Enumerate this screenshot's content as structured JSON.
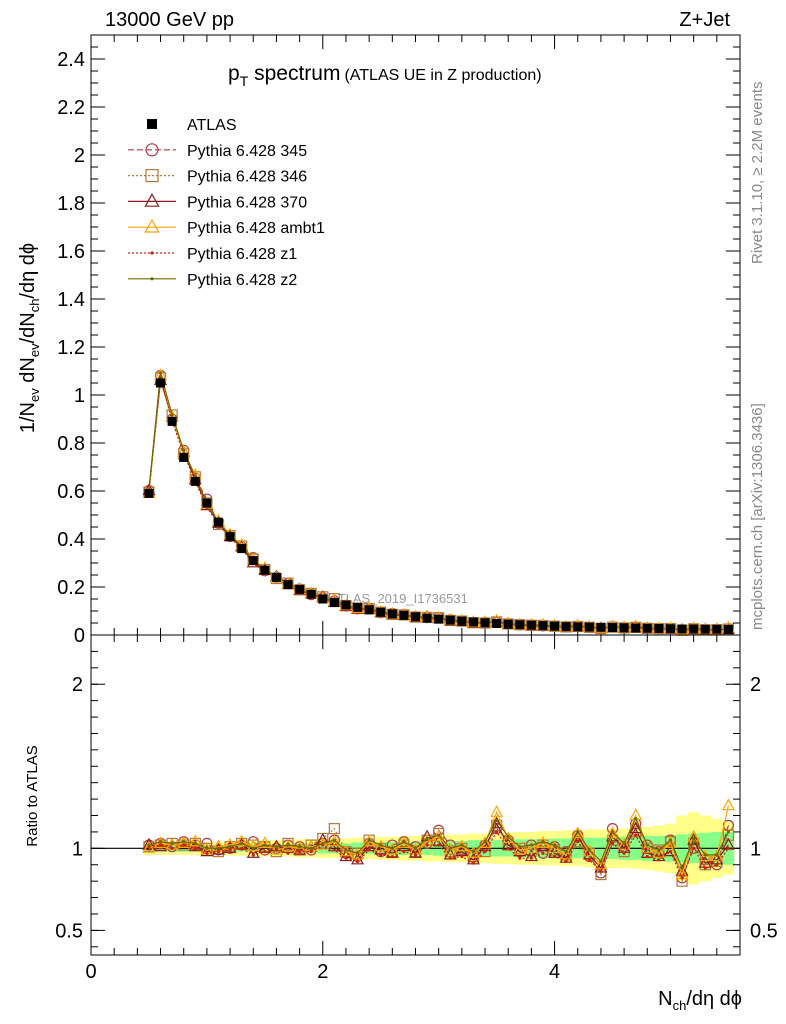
{
  "header": {
    "energy": "13000 GeV pp",
    "process": "Z+Jet"
  },
  "side_labels": {
    "rivet": "Rivet 3.1.10, ≥ 2.2M events",
    "mcplots": "mcplots.cern.ch [arXiv:1306.3436]"
  },
  "watermark": "ATLAS_2019_I1736531",
  "chart_data": [
    {
      "panel": "main",
      "type": "line",
      "title_main": "p",
      "title_sub": "T",
      "title_rest": " spectrum",
      "title_note": "(ATLAS UE in Z production)",
      "ylabel": {
        "a": "1/N",
        "a_sub": "ev",
        "b": " dN",
        "b_sub": "ev",
        "c": "/dN",
        "c_sub": "ch",
        "d": "/dη dϕ"
      },
      "xlabel": {
        "a": "N",
        "a_sub": "ch",
        "b": "/dη dϕ"
      },
      "xlim": [
        0,
        5.6
      ],
      "ylim": [
        0,
        2.5
      ],
      "yticks": [
        "0",
        "0.2",
        "0.4",
        "0.6",
        "0.8",
        "1",
        "1.2",
        "1.4",
        "1.6",
        "1.8",
        "2",
        "2.2",
        "2.4"
      ],
      "xticks": [
        "0",
        "2",
        "4"
      ],
      "x": [
        0.5,
        0.6,
        0.7,
        0.8,
        0.9,
        1.0,
        1.1,
        1.2,
        1.3,
        1.4,
        1.5,
        1.6,
        1.7,
        1.8,
        1.9,
        2.0,
        2.1,
        2.2,
        2.3,
        2.4,
        2.5,
        2.6,
        2.7,
        2.8,
        2.9,
        3.0,
        3.1,
        3.2,
        3.3,
        3.4,
        3.5,
        3.6,
        3.7,
        3.8,
        3.9,
        4.0,
        4.1,
        4.2,
        4.3,
        4.4,
        4.5,
        4.6,
        4.7,
        4.8,
        4.9,
        5.0,
        5.1,
        5.2,
        5.3,
        5.4,
        5.5
      ],
      "atlas": [
        0.59,
        1.05,
        0.89,
        0.74,
        0.64,
        0.55,
        0.47,
        0.41,
        0.36,
        0.31,
        0.27,
        0.24,
        0.21,
        0.19,
        0.17,
        0.15,
        0.135,
        0.125,
        0.115,
        0.105,
        0.095,
        0.088,
        0.082,
        0.076,
        0.07,
        0.066,
        0.062,
        0.058,
        0.054,
        0.051,
        0.048,
        0.045,
        0.043,
        0.041,
        0.039,
        0.037,
        0.035,
        0.034,
        0.033,
        0.032,
        0.031,
        0.03,
        0.029,
        0.028,
        0.027,
        0.026,
        0.025,
        0.025,
        0.024,
        0.024,
        0.023
      ],
      "legend": [
        {
          "name": "ATLAS",
          "color": "#000000",
          "marker": "filled-square",
          "dash": "none"
        },
        {
          "name": "Pythia 6.428 345",
          "color": "#b03a48",
          "marker": "open-circle",
          "dash": "6,3"
        },
        {
          "name": "Pythia 6.428 346",
          "color": "#b07a3a",
          "marker": "open-square",
          "dash": "2,2"
        },
        {
          "name": "Pythia 6.428 370",
          "color": "#8b1a1a",
          "marker": "open-triangle",
          "dash": "none"
        },
        {
          "name": "Pythia 6.428 ambt1",
          "color": "#ffa500",
          "marker": "open-triangle",
          "dash": "none"
        },
        {
          "name": "Pythia 6.428 z1",
          "color": "#cc2200",
          "marker": "dot",
          "dash": "2,2"
        },
        {
          "name": "Pythia 6.428 z2",
          "color": "#6b6b00",
          "marker": "dot",
          "dash": "none"
        }
      ]
    },
    {
      "panel": "ratio",
      "type": "line",
      "ylabel": "Ratio to ATLAS",
      "ylim": [
        0.35,
        2.3
      ],
      "yticks": [
        "0.5",
        "1",
        "2"
      ],
      "band_color_inner": "#88ff88",
      "band_color_outer": "#ffff88",
      "band_inner": [
        0.02,
        0.02,
        0.02,
        0.02,
        0.02,
        0.02,
        0.02,
        0.02,
        0.02,
        0.02,
        0.025,
        0.025,
        0.025,
        0.03,
        0.03,
        0.03,
        0.03,
        0.03,
        0.035,
        0.035,
        0.035,
        0.04,
        0.04,
        0.04,
        0.04,
        0.045,
        0.045,
        0.045,
        0.05,
        0.05,
        0.05,
        0.05,
        0.055,
        0.055,
        0.055,
        0.06,
        0.06,
        0.06,
        0.065,
        0.065,
        0.065,
        0.07,
        0.07,
        0.075,
        0.075,
        0.08,
        0.085,
        0.09,
        0.095,
        0.1,
        0.1
      ],
      "band_outer": [
        0.04,
        0.04,
        0.04,
        0.04,
        0.04,
        0.04,
        0.04,
        0.045,
        0.045,
        0.045,
        0.05,
        0.05,
        0.05,
        0.055,
        0.055,
        0.06,
        0.06,
        0.06,
        0.065,
        0.065,
        0.07,
        0.07,
        0.075,
        0.075,
        0.08,
        0.08,
        0.085,
        0.085,
        0.09,
        0.09,
        0.095,
        0.095,
        0.1,
        0.1,
        0.105,
        0.105,
        0.11,
        0.11,
        0.115,
        0.115,
        0.12,
        0.12,
        0.125,
        0.13,
        0.14,
        0.15,
        0.2,
        0.22,
        0.2,
        0.18,
        0.16
      ],
      "series": [
        {
          "name": "Pythia 6.428 345",
          "values": [
            1.02,
            1.03,
            1.01,
            1.04,
            1.02,
            1.03,
            0.99,
            1.0,
            1.02,
            1.04,
            0.99,
            1.0,
            1.02,
            1.01,
            0.99,
            1.03,
            1.05,
            0.97,
            0.95,
            1.03,
            0.98,
            1.02,
            1.04,
            1.01,
            1.03,
            1.11,
            1.02,
            0.99,
            0.96,
            1.02,
            1.12,
            1.05,
            0.98,
            1.02,
            0.97,
            1.01,
            0.98,
            1.08,
            0.95,
            0.85,
            1.12,
            1.01,
            1.15,
            1.02,
            0.98,
            1.05,
            0.82,
            1.0,
            0.93,
            0.9,
            1.14
          ]
        },
        {
          "name": "Pythia 6.428 346",
          "values": [
            1.01,
            1.02,
            1.03,
            1.02,
            1.03,
            1.0,
            0.98,
            1.01,
            1.03,
            1.02,
            1.01,
            0.98,
            1.03,
            0.99,
            1.02,
            1.06,
            1.12,
            0.98,
            0.97,
            1.05,
            1.0,
            0.98,
            1.02,
            0.98,
            1.05,
            1.09,
            0.98,
            1.0,
            0.95,
            0.98,
            1.14,
            1.02,
            1.0,
            0.99,
            1.02,
            0.99,
            0.96,
            1.04,
            0.97,
            0.84,
            1.05,
            0.98,
            1.1,
            1.0,
            0.99,
            1.04,
            0.8,
            1.03,
            0.9,
            0.92,
            1.08
          ]
        },
        {
          "name": "Pythia 6.428 370",
          "values": [
            1.02,
            1.01,
            1.02,
            1.03,
            1.01,
            0.98,
            0.99,
            1.0,
            1.02,
            0.97,
            1.0,
            1.01,
            1.0,
            0.99,
            1.01,
            1.05,
            1.01,
            0.95,
            0.93,
            1.01,
            0.99,
            0.97,
            1.01,
            0.97,
            1.07,
            1.04,
            0.96,
            0.98,
            0.93,
            1.01,
            1.15,
            1.02,
            0.98,
            0.95,
            1.01,
            0.97,
            0.94,
            1.07,
            0.96,
            0.88,
            1.07,
            1.0,
            1.12,
            0.97,
            0.95,
            0.98,
            0.86,
            1.05,
            0.91,
            0.93,
            1.02
          ]
        },
        {
          "name": "Pythia 6.428 ambt1",
          "values": [
            1.0,
            1.03,
            1.02,
            1.03,
            1.04,
            0.99,
            1.01,
            1.02,
            1.04,
            1.01,
            1.03,
            0.99,
            1.01,
            1.0,
            1.01,
            1.02,
            1.04,
            0.98,
            0.96,
            1.04,
            1.01,
            0.99,
            1.03,
            0.99,
            1.04,
            1.07,
            0.99,
            1.01,
            0.97,
            1.03,
            1.22,
            1.06,
            0.99,
            1.0,
            1.03,
            1.0,
            0.96,
            1.09,
            0.98,
            0.9,
            1.09,
            1.02,
            1.2,
            1.0,
            0.97,
            1.03,
            0.84,
            1.07,
            0.95,
            0.95,
            1.26
          ]
        },
        {
          "name": "Pythia 6.428 z1",
          "values": [
            1.01,
            1.02,
            1.0,
            1.02,
            1.0,
            0.97,
            0.98,
            0.99,
            1.0,
            0.96,
            0.98,
            0.99,
            0.97,
            0.98,
            0.98,
            1.02,
            0.99,
            0.94,
            0.92,
            0.99,
            0.96,
            0.95,
            0.98,
            0.96,
            1.02,
            1.02,
            0.94,
            0.95,
            0.91,
            0.98,
            1.1,
            1.0,
            0.94,
            0.94,
            0.97,
            0.95,
            0.92,
            1.04,
            0.93,
            0.86,
            1.03,
            0.97,
            1.08,
            0.95,
            0.93,
            0.98,
            0.82,
            1.0,
            0.88,
            0.9,
            1.0
          ]
        },
        {
          "name": "Pythia 6.428 z2",
          "values": [
            1.02,
            1.04,
            1.03,
            1.04,
            1.03,
            1.0,
            1.0,
            1.01,
            1.03,
            1.0,
            1.02,
            1.01,
            1.02,
            1.01,
            1.0,
            1.03,
            1.05,
            0.99,
            0.97,
            1.05,
            1.02,
            1.0,
            1.04,
            1.0,
            1.06,
            1.08,
            1.0,
            1.02,
            0.98,
            1.04,
            1.17,
            1.07,
            1.01,
            1.02,
            1.04,
            1.02,
            0.98,
            1.1,
            0.99,
            0.92,
            1.1,
            1.03,
            1.18,
            1.02,
            0.99,
            1.05,
            0.88,
            1.06,
            0.96,
            0.96,
            1.1
          ]
        }
      ]
    }
  ]
}
